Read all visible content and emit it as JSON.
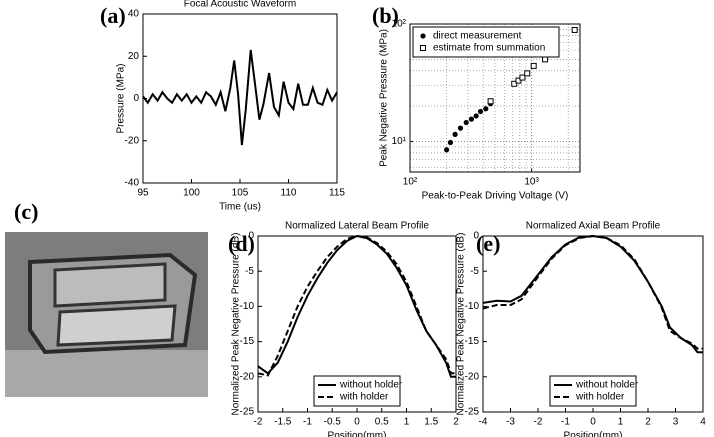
{
  "chart_data": [
    {
      "type": "line",
      "panel_label": "(a)",
      "title": "Focal Acoustic Waveform",
      "xlabel": "Time (us)",
      "ylabel": "Pressure (MPa)",
      "xlim": [
        95,
        115
      ],
      "xticks": [
        95,
        100,
        105,
        110,
        115
      ],
      "ylim": [
        -40,
        40
      ],
      "yticks": [
        -40,
        -20,
        0,
        20,
        40
      ],
      "series": [
        {
          "color": "#000000",
          "dash": "solid",
          "x": [
            95,
            95.5,
            96,
            96.5,
            97,
            97.5,
            98,
            98.5,
            99,
            99.5,
            100,
            100.5,
            101,
            101.5,
            102,
            102.5,
            103,
            103.5,
            104,
            104.4,
            104.8,
            105.2,
            105.6,
            106.1,
            106.6,
            107,
            107.4,
            108,
            108.5,
            109,
            109.5,
            110,
            110.5,
            111,
            111.5,
            112,
            112.5,
            113,
            113.5,
            114,
            114.5,
            115
          ],
          "values": [
            1,
            -2,
            2,
            -1,
            3,
            0,
            -2,
            2,
            -1,
            2,
            -2,
            1,
            -2,
            3,
            1,
            -3,
            3,
            -6,
            5,
            18,
            2,
            -22,
            -5,
            23,
            5,
            -10,
            -3,
            12,
            -4,
            -8,
            8,
            -2,
            -5,
            7,
            -3,
            -3,
            5,
            -2,
            -3,
            4,
            -1,
            3
          ]
        }
      ]
    },
    {
      "type": "scatter",
      "panel_label": "(b)",
      "xlabel": "Peak-to-Peak Driving Voltage (V)",
      "ylabel": "Peak Negative Pressure (MPa)",
      "xscale": "log",
      "yscale": "log",
      "grid": true,
      "legend": "upper left",
      "xlim": [
        100,
        2500
      ],
      "xticks": [
        {
          "value": 100,
          "label": "10²"
        },
        {
          "value": 1000,
          "label": "10³"
        }
      ],
      "ylim": [
        5.5,
        100
      ],
      "yticks": [
        {
          "value": 10,
          "label": "10¹"
        },
        {
          "value": 100,
          "label": "10²"
        }
      ],
      "series": [
        {
          "name": "direct measurement",
          "color": "#000000",
          "marker": "filled-circle",
          "x": [
            200,
            215,
            235,
            260,
            290,
            320,
            350,
            380,
            420,
            460
          ],
          "values": [
            8.5,
            9.8,
            11.5,
            13,
            14.5,
            15.5,
            16.5,
            18,
            19,
            21
          ]
        },
        {
          "name": "estimate from summation",
          "color": "#000000",
          "marker": "open-square",
          "x": [
            460,
            720,
            780,
            840,
            920,
            1040,
            1290,
            1580,
            2260
          ],
          "values": [
            22,
            31,
            33,
            35,
            38,
            44,
            50,
            56,
            89
          ]
        }
      ]
    },
    {
      "type": "line",
      "panel_label": "(d)",
      "title": "Normalized Lateral Beam Profile",
      "xlabel": "Position(mm)",
      "ylabel": "Normalized Peak Negative Pressure (dB)",
      "legend": "lower center",
      "xlim": [
        -2,
        2
      ],
      "xticks": [
        -2,
        -1.5,
        -1,
        -0.5,
        0,
        0.5,
        1,
        1.5,
        2
      ],
      "ylim": [
        -25,
        0
      ],
      "yticks": [
        -25,
        -20,
        -15,
        -10,
        -5,
        0
      ],
      "series": [
        {
          "name": "without holder",
          "color": "#000000",
          "dash": "solid",
          "x": [
            -2,
            -1.9,
            -1.8,
            -1.6,
            -1.4,
            -1.2,
            -1,
            -0.8,
            -0.6,
            -0.4,
            -0.2,
            0,
            0.2,
            0.4,
            0.6,
            0.8,
            1,
            1.2,
            1.4,
            1.6,
            1.8,
            1.9,
            2
          ],
          "values": [
            -18.5,
            -19,
            -19.5,
            -18,
            -15,
            -11.5,
            -8.5,
            -6,
            -3.8,
            -2,
            -0.7,
            0,
            -0.3,
            -1.2,
            -2.5,
            -4.5,
            -7,
            -10.5,
            -13.5,
            -15.5,
            -18,
            -20,
            -20
          ]
        },
        {
          "name": "with holder",
          "color": "#000000",
          "dash": "dashed",
          "x": [
            -2,
            -1.8,
            -1.6,
            -1.4,
            -1.2,
            -1,
            -0.8,
            -0.6,
            -0.4,
            -0.2,
            0,
            0.2,
            0.4,
            0.6,
            0.8,
            1,
            1.2,
            1.4,
            1.6,
            1.8,
            1.9,
            2
          ],
          "values": [
            -19.5,
            -19.8,
            -17,
            -13.5,
            -10,
            -7.2,
            -5,
            -3,
            -1.5,
            -0.4,
            0,
            -0.2,
            -1,
            -2.2,
            -4,
            -6.5,
            -10,
            -13.5,
            -15.5,
            -17.5,
            -19.5,
            -19.5
          ]
        }
      ]
    },
    {
      "type": "line",
      "panel_label": "(e)",
      "title": "Normalized Axial Beam Profile",
      "xlabel": "Position(mm)",
      "ylabel": "Normalized Peak Negative Pressure (dB)",
      "legend": "lower center",
      "xlim": [
        -4,
        4
      ],
      "xticks": [
        -4,
        -3,
        -2,
        -1,
        0,
        1,
        2,
        3,
        4
      ],
      "ylim": [
        -25,
        0
      ],
      "yticks": [
        -25,
        -20,
        -15,
        -10,
        -5,
        0
      ],
      "series": [
        {
          "name": "without holder",
          "color": "#000000",
          "dash": "solid",
          "x": [
            -4,
            -3.5,
            -3,
            -2.6,
            -2,
            -1.5,
            -1,
            -0.5,
            0,
            0.5,
            1,
            1.5,
            2,
            2.5,
            2.8,
            3.2,
            3.6,
            3.8,
            4
          ],
          "values": [
            -9.5,
            -9.2,
            -9.3,
            -8.5,
            -5.5,
            -3,
            -1.2,
            -0.2,
            0,
            -0.3,
            -1.5,
            -3.5,
            -6.5,
            -10,
            -13,
            -14.5,
            -15.5,
            -16.5,
            -16.5
          ]
        },
        {
          "name": "with holder",
          "color": "#000000",
          "dash": "dashed",
          "x": [
            -4,
            -3.5,
            -3,
            -2.6,
            -2,
            -1.5,
            -1,
            -0.5,
            0,
            0.5,
            1,
            1.5,
            2,
            2.5,
            2.8,
            3.2,
            3.6,
            3.8,
            4
          ],
          "values": [
            -10.3,
            -9.8,
            -9.8,
            -9,
            -5.8,
            -3.2,
            -1.3,
            -0.3,
            0,
            -0.3,
            -1.3,
            -3.3,
            -6.5,
            -10.2,
            -13.5,
            -14.5,
            -15.3,
            -16,
            -16
          ]
        }
      ]
    }
  ],
  "photo": {
    "panel_label": "(c)"
  }
}
